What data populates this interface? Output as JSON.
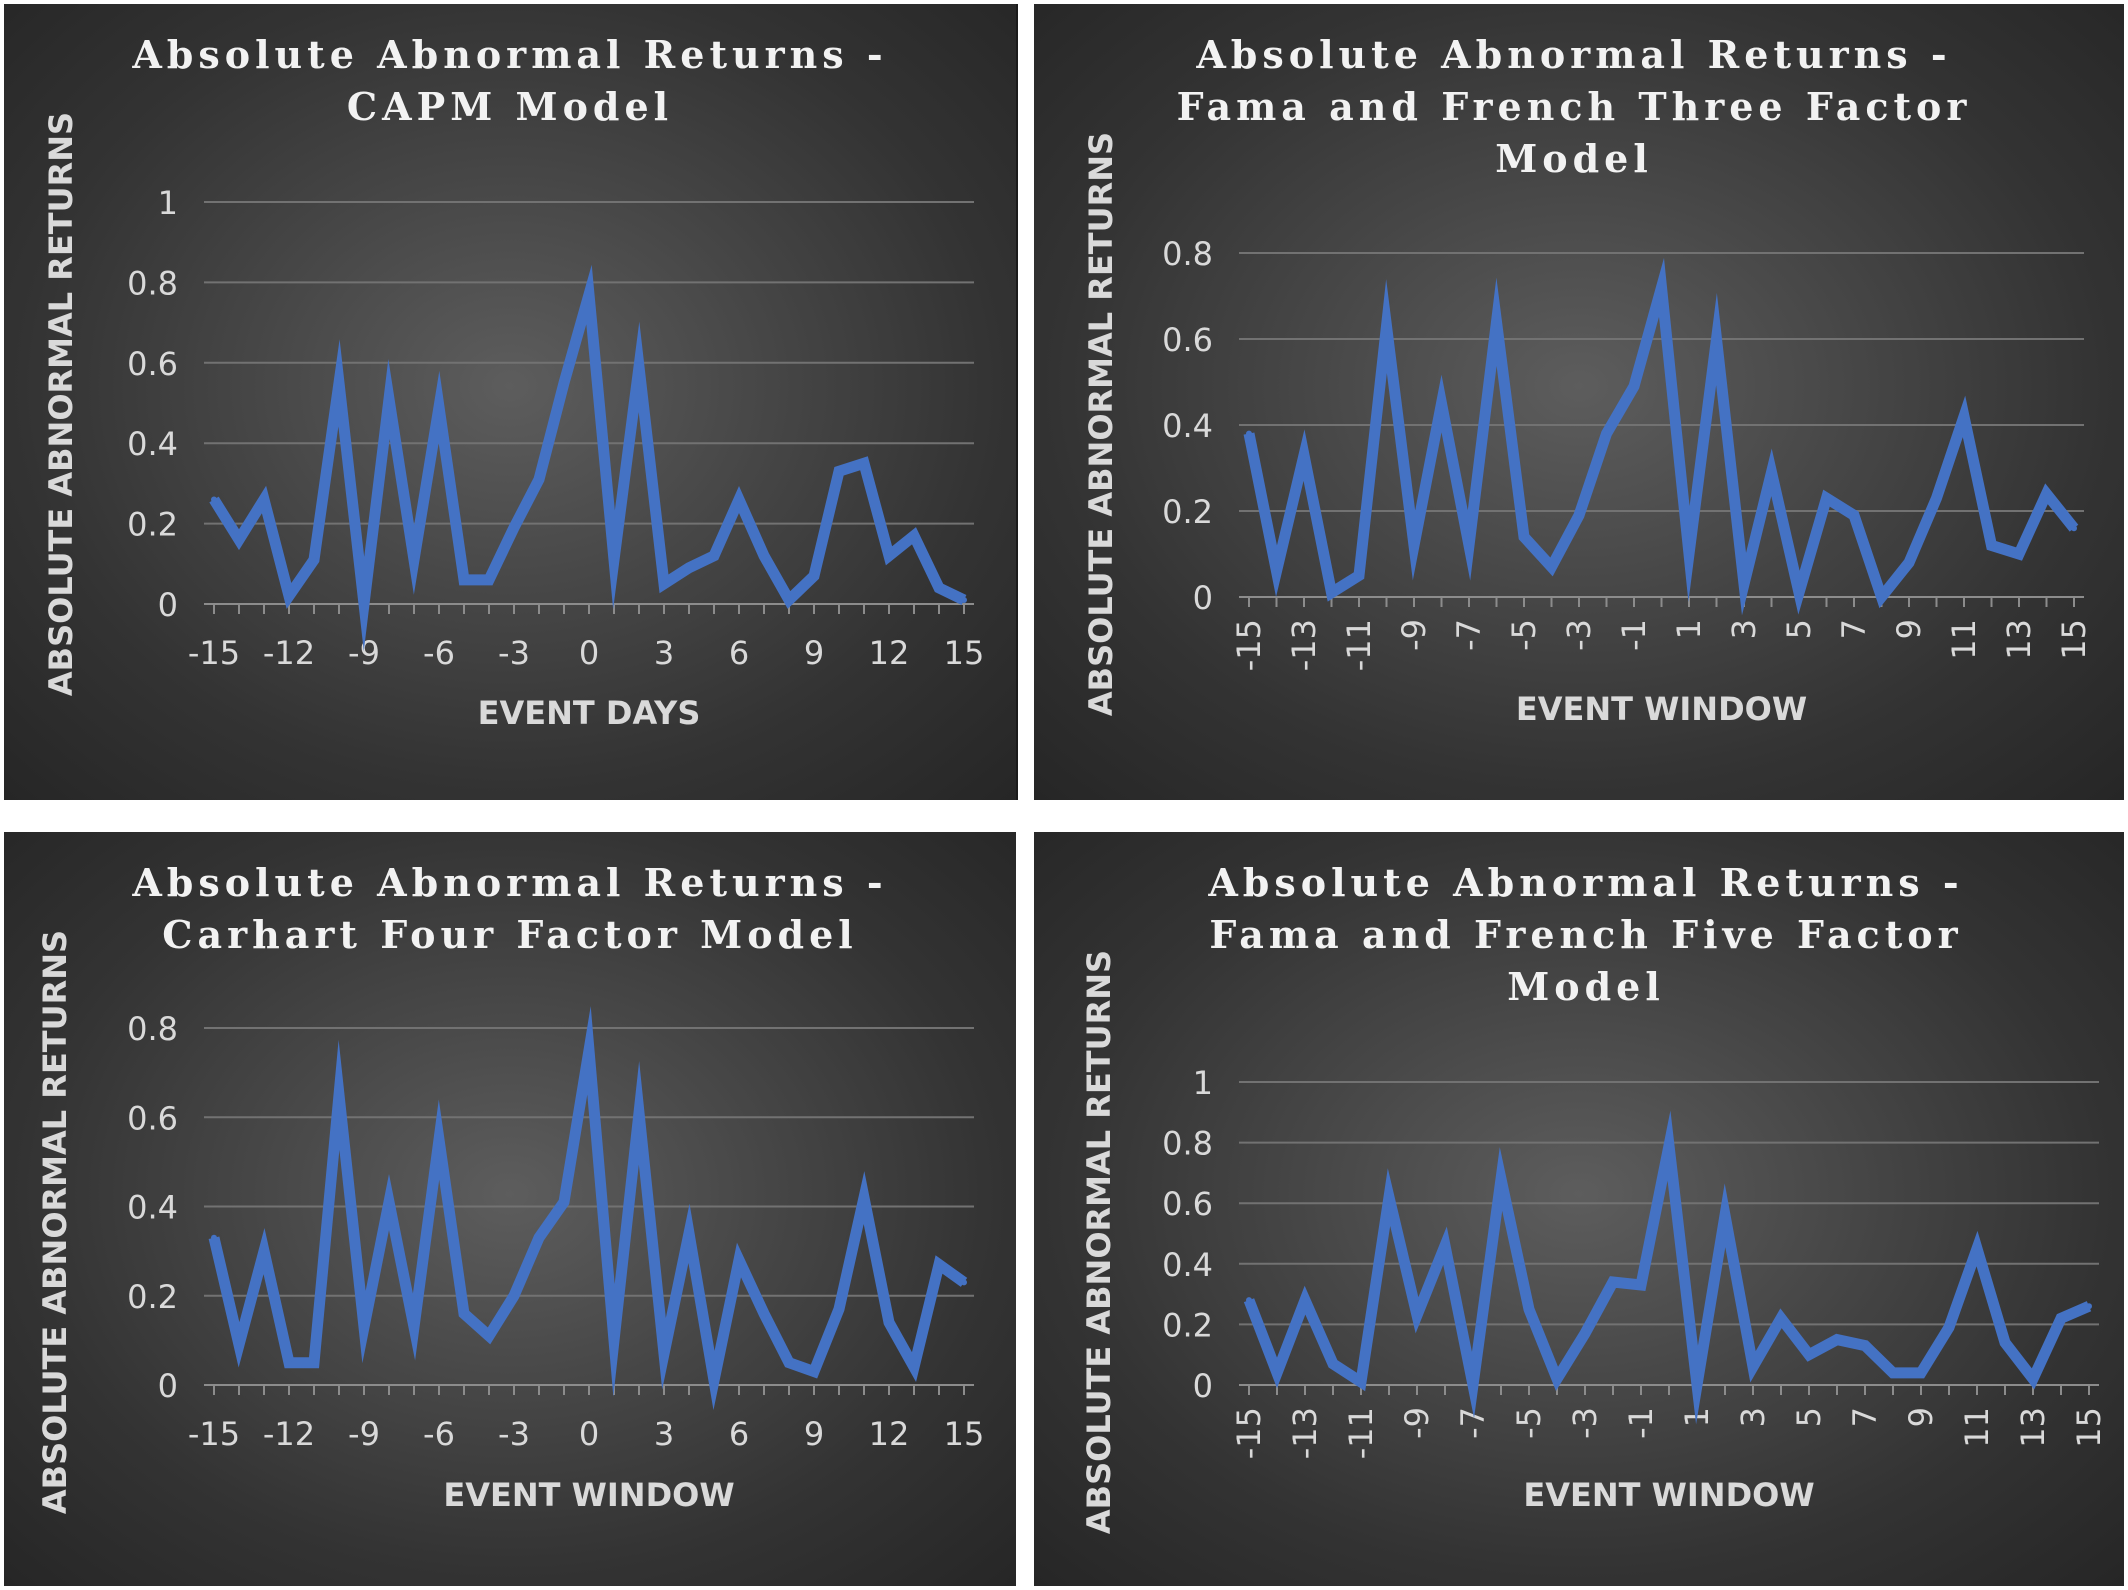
{
  "colors": {
    "series": "#4472c4",
    "text": "#d9d9d9"
  },
  "chart_data": [
    {
      "type": "line",
      "title_lines": [
        "Absolute Abnormal Returns -",
        "CAPM Model"
      ],
      "xlabel": "EVENT DAYS",
      "ylabel": "ABSOLUTE ABNORMAL RETURNS",
      "ylim": [
        0,
        1
      ],
      "yticks": [
        "0",
        "0.2",
        "0.4",
        "0.6",
        "0.8",
        "1"
      ],
      "xticks": [
        "-15",
        "-12",
        "-9",
        "-6",
        "-3",
        "0",
        "3",
        "6",
        "9",
        "12",
        "15"
      ],
      "x": [
        -15,
        -14,
        -13,
        -12,
        -11,
        -10,
        -9,
        -8,
        -7,
        -6,
        -5,
        -4,
        -3,
        -2,
        -1,
        0,
        1,
        2,
        3,
        4,
        5,
        6,
        7,
        8,
        9,
        10,
        11,
        12,
        13,
        14,
        15
      ],
      "values": [
        0.26,
        0.16,
        0.26,
        0.02,
        0.11,
        0.55,
        0.0,
        0.51,
        0.11,
        0.49,
        0.06,
        0.06,
        0.19,
        0.31,
        0.55,
        0.77,
        0.11,
        0.59,
        0.05,
        0.09,
        0.12,
        0.26,
        0.12,
        0.01,
        0.07,
        0.33,
        0.35,
        0.12,
        0.17,
        0.04,
        0.01
      ],
      "grid": true,
      "legend": "none"
    },
    {
      "type": "line",
      "title_lines": [
        "Absolute Abnormal Returns -",
        "Fama and French Three Factor",
        "Model"
      ],
      "xlabel": "EVENT WINDOW",
      "ylabel": "ABSOLUTE ABNORMAL RETURNS",
      "ylim": [
        0,
        0.8
      ],
      "yticks": [
        "0",
        "0.2",
        "0.4",
        "0.6",
        "0.8"
      ],
      "xticks": [
        "-15",
        "-13",
        "-11",
        "-9",
        "-7",
        "-5",
        "-3",
        "-1",
        "1",
        "3",
        "5",
        "7",
        "9",
        "11",
        "13",
        "15"
      ],
      "x": [
        -15,
        -14,
        -13,
        -12,
        -11,
        -10,
        -9,
        -8,
        -7,
        -6,
        -5,
        -4,
        -3,
        -2,
        -1,
        0,
        1,
        2,
        3,
        4,
        5,
        6,
        7,
        8,
        9,
        10,
        11,
        12,
        13,
        14,
        15
      ],
      "values": [
        0.38,
        0.06,
        0.33,
        0.01,
        0.05,
        0.63,
        0.12,
        0.45,
        0.12,
        0.64,
        0.14,
        0.07,
        0.19,
        0.38,
        0.49,
        0.72,
        0.1,
        0.6,
        0.03,
        0.29,
        0.01,
        0.23,
        0.19,
        0.0,
        0.08,
        0.23,
        0.42,
        0.12,
        0.1,
        0.24,
        0.16
      ],
      "grid": true,
      "legend": "none"
    },
    {
      "type": "line",
      "title_lines": [
        "Absolute Abnormal Returns -",
        "Carhart Four Factor Model"
      ],
      "xlabel": "EVENT WINDOW",
      "ylabel": "ABSOLUTE ABNORMAL RETURNS",
      "ylim": [
        0,
        0.8
      ],
      "yticks": [
        "0",
        "0.2",
        "0.4",
        "0.6",
        "0.8"
      ],
      "xticks": [
        "-15",
        "-12",
        "-9",
        "-6",
        "-3",
        "0",
        "3",
        "6",
        "9",
        "12",
        "15"
      ],
      "x": [
        -15,
        -14,
        -13,
        -12,
        -11,
        -10,
        -9,
        -8,
        -7,
        -6,
        -5,
        -4,
        -3,
        -2,
        -1,
        0,
        1,
        2,
        3,
        4,
        5,
        6,
        7,
        8,
        9,
        10,
        11,
        12,
        13,
        14,
        15
      ],
      "values": [
        0.33,
        0.09,
        0.3,
        0.05,
        0.05,
        0.65,
        0.13,
        0.41,
        0.13,
        0.55,
        0.16,
        0.11,
        0.2,
        0.33,
        0.41,
        0.75,
        0.1,
        0.61,
        0.07,
        0.34,
        0.01,
        0.28,
        0.16,
        0.05,
        0.03,
        0.17,
        0.42,
        0.14,
        0.04,
        0.27,
        0.23
      ],
      "grid": true,
      "legend": "none"
    },
    {
      "type": "line",
      "title_lines": [
        "Absolute Abnormal Returns -",
        "Fama and French Five Factor",
        "Model"
      ],
      "xlabel": "EVENT WINDOW",
      "ylabel": "ABSOLUTE ABNORMAL RETURNS",
      "ylim": [
        0,
        1
      ],
      "yticks": [
        "0",
        "0.2",
        "0.4",
        "0.6",
        "0.8",
        "1"
      ],
      "xticks": [
        "-15",
        "-13",
        "-11",
        "-9",
        "-7",
        "-5",
        "-3",
        "-1",
        "1",
        "3",
        "5",
        "7",
        "9",
        "11",
        "13",
        "15"
      ],
      "x": [
        -15,
        -14,
        -13,
        -12,
        -11,
        -10,
        -9,
        -8,
        -7,
        -6,
        -5,
        -4,
        -3,
        -2,
        -1,
        0,
        1,
        2,
        3,
        4,
        5,
        6,
        7,
        8,
        9,
        10,
        11,
        12,
        13,
        14,
        15
      ],
      "values": [
        0.28,
        0.04,
        0.28,
        0.07,
        0.01,
        0.62,
        0.23,
        0.46,
        0.0,
        0.68,
        0.25,
        0.02,
        0.17,
        0.34,
        0.33,
        0.79,
        0.0,
        0.56,
        0.06,
        0.22,
        0.1,
        0.15,
        0.13,
        0.04,
        0.04,
        0.19,
        0.45,
        0.14,
        0.02,
        0.22,
        0.26
      ],
      "grid": true,
      "legend": "none"
    }
  ]
}
